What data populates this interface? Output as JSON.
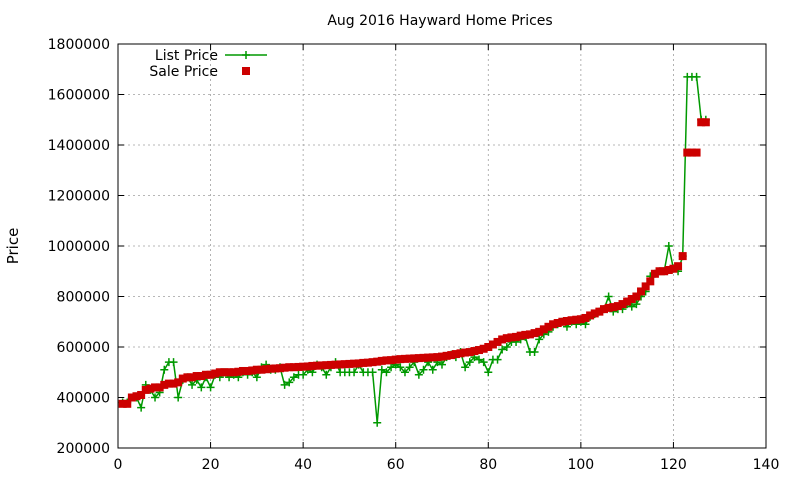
{
  "chart_data": {
    "type": "line",
    "title": "Aug 2016 Hayward Home Prices",
    "xlabel": "",
    "ylabel": "Price",
    "xlim": [
      0,
      140
    ],
    "ylim": [
      200000,
      1800000
    ],
    "x_ticks": [
      0,
      20,
      40,
      60,
      80,
      100,
      120,
      140
    ],
    "y_ticks": [
      200000,
      400000,
      600000,
      800000,
      1000000,
      1200000,
      1400000,
      1600000,
      1800000
    ],
    "grid": true,
    "legend_position": "top-left",
    "series": [
      {
        "name": "List Price",
        "style": "line+cross",
        "color": "#009900",
        "x": [
          1,
          2,
          3,
          4,
          5,
          6,
          7,
          8,
          9,
          10,
          11,
          12,
          13,
          14,
          15,
          16,
          17,
          18,
          19,
          20,
          21,
          22,
          23,
          24,
          25,
          26,
          27,
          28,
          29,
          30,
          31,
          32,
          33,
          34,
          35,
          36,
          37,
          38,
          39,
          40,
          41,
          42,
          43,
          44,
          45,
          46,
          47,
          48,
          49,
          50,
          51,
          52,
          53,
          54,
          55,
          56,
          57,
          58,
          59,
          60,
          61,
          62,
          63,
          64,
          65,
          66,
          67,
          68,
          69,
          70,
          71,
          72,
          73,
          74,
          75,
          76,
          77,
          78,
          79,
          80,
          81,
          82,
          83,
          84,
          85,
          86,
          87,
          88,
          89,
          90,
          91,
          92,
          93,
          94,
          95,
          96,
          97,
          98,
          99,
          100,
          101,
          102,
          103,
          104,
          105,
          106,
          107,
          108,
          109,
          110,
          111,
          112,
          113,
          114,
          115,
          116,
          117,
          118,
          119,
          120,
          121,
          122,
          123,
          124,
          125,
          126,
          127
        ],
        "values": [
          380000,
          380000,
          400000,
          400000,
          360000,
          450000,
          430000,
          400000,
          420000,
          510000,
          540000,
          540000,
          400000,
          470000,
          480000,
          450000,
          470000,
          440000,
          480000,
          440000,
          490000,
          480000,
          500000,
          480000,
          490000,
          480000,
          500000,
          490000,
          500000,
          480000,
          520000,
          530000,
          510000,
          510000,
          520000,
          450000,
          460000,
          480000,
          490000,
          490000,
          510000,
          500000,
          530000,
          520000,
          490000,
          520000,
          540000,
          500000,
          500000,
          500000,
          500000,
          530000,
          500000,
          500000,
          500000,
          300000,
          510000,
          500000,
          520000,
          530000,
          520000,
          500000,
          520000,
          540000,
          490000,
          510000,
          540000,
          510000,
          540000,
          530000,
          560000,
          570000,
          560000,
          580000,
          520000,
          540000,
          560000,
          550000,
          540000,
          500000,
          550000,
          550000,
          590000,
          600000,
          620000,
          620000,
          630000,
          640000,
          580000,
          580000,
          630000,
          650000,
          660000,
          680000,
          690000,
          700000,
          680000,
          700000,
          690000,
          700000,
          690000,
          720000,
          730000,
          740000,
          750000,
          800000,
          740000,
          750000,
          750000,
          770000,
          760000,
          770000,
          800000,
          820000,
          880000,
          890000,
          900000,
          900000,
          1000000,
          910000,
          900000,
          960000,
          1670000,
          1670000,
          1670000,
          1500000,
          1500000
        ]
      },
      {
        "name": "Sale Price",
        "style": "square",
        "color": "#cc0000",
        "x": [
          1,
          2,
          3,
          4,
          5,
          6,
          7,
          8,
          9,
          10,
          11,
          12,
          13,
          14,
          15,
          16,
          17,
          18,
          19,
          20,
          21,
          22,
          23,
          24,
          25,
          26,
          27,
          28,
          29,
          30,
          31,
          32,
          33,
          34,
          35,
          36,
          37,
          38,
          39,
          40,
          41,
          42,
          43,
          44,
          45,
          46,
          47,
          48,
          49,
          50,
          51,
          52,
          53,
          54,
          55,
          56,
          57,
          58,
          59,
          60,
          61,
          62,
          63,
          64,
          65,
          66,
          67,
          68,
          69,
          70,
          71,
          72,
          73,
          74,
          75,
          76,
          77,
          78,
          79,
          80,
          81,
          82,
          83,
          84,
          85,
          86,
          87,
          88,
          89,
          90,
          91,
          92,
          93,
          94,
          95,
          96,
          97,
          98,
          99,
          100,
          101,
          102,
          103,
          104,
          105,
          106,
          107,
          108,
          109,
          110,
          111,
          112,
          113,
          114,
          115,
          116,
          117,
          118,
          119,
          120,
          121,
          122,
          123,
          124,
          125,
          126,
          127
        ],
        "values": [
          375000,
          375000,
          400000,
          405000,
          410000,
          430000,
          435000,
          440000,
          440000,
          450000,
          455000,
          455000,
          460000,
          475000,
          480000,
          480000,
          485000,
          485000,
          490000,
          490000,
          495000,
          500000,
          500000,
          500000,
          500000,
          502000,
          505000,
          505000,
          507000,
          510000,
          510000,
          512000,
          514000,
          515000,
          516000,
          518000,
          520000,
          520000,
          521000,
          522000,
          523000,
          525000,
          526000,
          527000,
          528000,
          529000,
          530000,
          531000,
          532000,
          533000,
          534000,
          535000,
          537000,
          538000,
          540000,
          542000,
          545000,
          547000,
          548000,
          550000,
          552000,
          553000,
          554000,
          555000,
          556000,
          557000,
          558000,
          559000,
          560000,
          562000,
          565000,
          568000,
          572000,
          575000,
          578000,
          580000,
          584000,
          588000,
          593000,
          600000,
          610000,
          620000,
          630000,
          635000,
          638000,
          640000,
          645000,
          648000,
          650000,
          655000,
          660000,
          670000,
          680000,
          690000,
          695000,
          700000,
          703000,
          706000,
          708000,
          710000,
          715000,
          725000,
          733000,
          740000,
          750000,
          755000,
          758000,
          762000,
          770000,
          780000,
          790000,
          800000,
          820000,
          840000,
          860000,
          890000,
          900000,
          900000,
          905000,
          910000,
          920000,
          960000,
          1370000,
          1370000,
          1370000,
          1490000,
          1490000
        ]
      }
    ]
  }
}
